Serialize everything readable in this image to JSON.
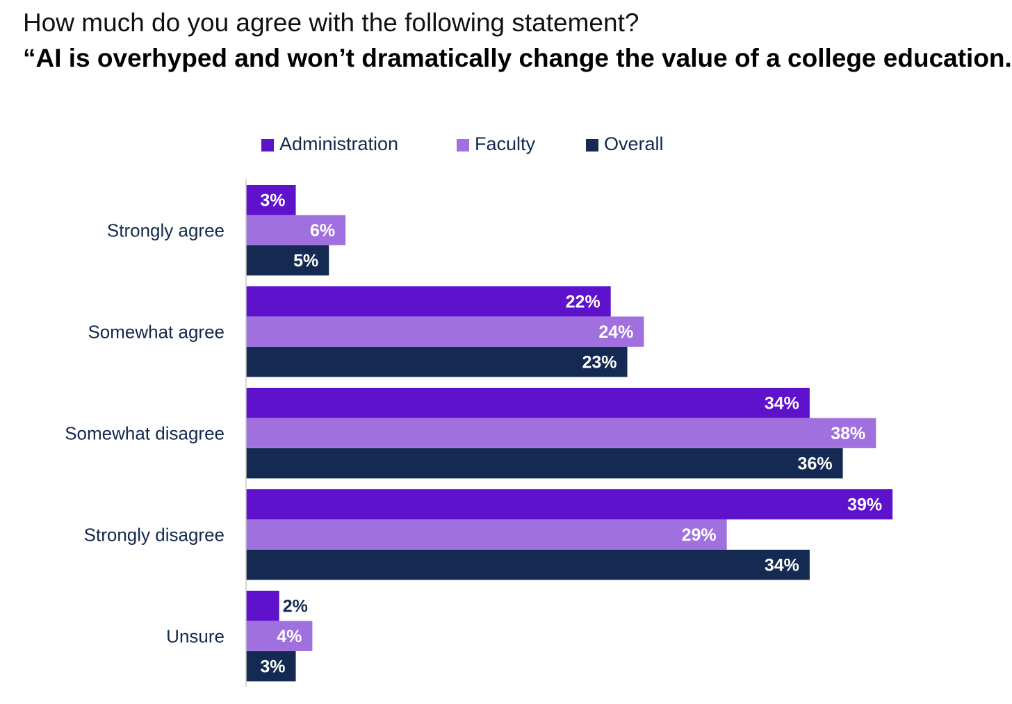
{
  "header": {
    "question": "How much do you agree with the following statement?",
    "statement": "“AI is overhyped and won’t dramatically change the value of a college education.”"
  },
  "colors": {
    "administration": "#5e12cc",
    "faculty": "#a070df",
    "overall": "#142a52",
    "axis": "#c8c8c8",
    "label_text": "#13294b",
    "bar_label_inside": "#ffffff",
    "bar_label_outside": "#142a52"
  },
  "chart_data": {
    "type": "bar",
    "orientation": "horizontal",
    "title": "“AI is overhyped and won’t dramatically change the value of a college education.”",
    "subtitle": "How much do you agree with the following statement?",
    "categories": [
      "Strongly agree",
      "Somewhat agree",
      "Somewhat disagree",
      "Strongly disagree",
      "Unsure"
    ],
    "series": [
      {
        "name": "Administration",
        "values": [
          3,
          22,
          34,
          39,
          2
        ],
        "labels": [
          "3%",
          "22%",
          "34%",
          "39%",
          "2%"
        ]
      },
      {
        "name": "Faculty",
        "values": [
          6,
          24,
          38,
          29,
          4
        ],
        "labels": [
          "6%",
          "24%",
          "38%",
          "29%",
          "4%"
        ]
      },
      {
        "name": "Overall",
        "values": [
          5,
          23,
          36,
          34,
          3
        ],
        "labels": [
          "5%",
          "23%",
          "36%",
          "34%",
          "3%"
        ]
      }
    ],
    "legend_position": "top",
    "xlim": [
      0,
      39
    ],
    "unit": "%",
    "grid": false
  }
}
